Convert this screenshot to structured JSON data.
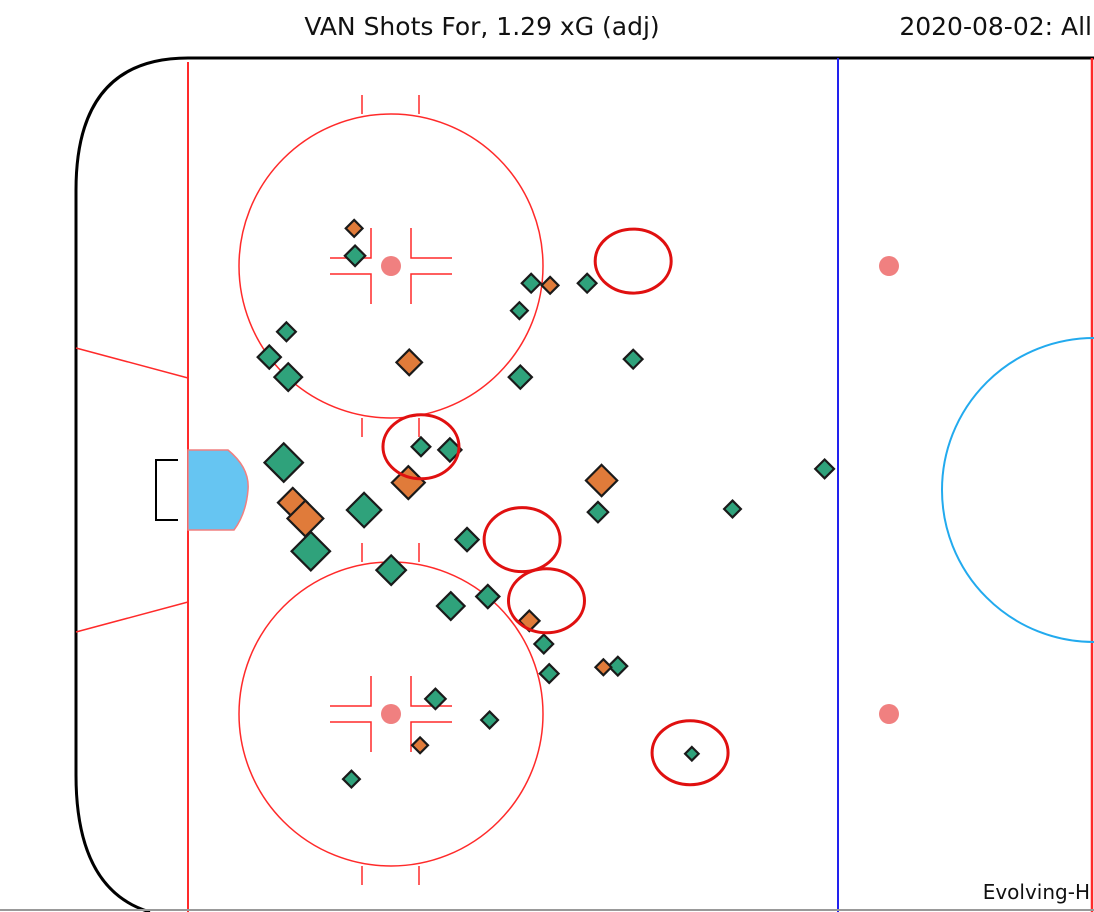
{
  "header": {
    "title": "VAN Shots For, 1.29 xG (adj)",
    "subtitle": "2020-08-02: All"
  },
  "footer": {
    "credit": "Evolving-H"
  },
  "chart_data": {
    "type": "scatter",
    "colors": {
      "goal": "#e07b3a",
      "shot": "#2fa27b",
      "marker_outline": "#1a1a1a",
      "highlight_circle": "#e01010",
      "rink_lines": "#ff2a2a",
      "blue_line": "#2222ee",
      "crease": "#66c5f2",
      "center_circle": "#22aaee",
      "faceoff_dot": "#f08080"
    },
    "series": [
      {
        "points": [
          {
            "x": 18.5,
            "y": -22.2,
            "xg": 0.02
          },
          {
            "x": 38.0,
            "y": -19.6,
            "xg": 0.015
          },
          {
            "x": 44.2,
            "y": -19.6,
            "xg": 0.015
          },
          {
            "x": 36.7,
            "y": -17.0,
            "xg": 0.01
          },
          {
            "x": 10.9,
            "y": -15.0,
            "xg": 0.015
          },
          {
            "x": 49.3,
            "y": -12.4,
            "xg": 0.015
          },
          {
            "x": 9.0,
            "y": -12.6,
            "xg": 0.03
          },
          {
            "x": 11.1,
            "y": -10.7,
            "xg": 0.05
          },
          {
            "x": 36.8,
            "y": -10.7,
            "xg": 0.03
          },
          {
            "x": 25.8,
            "y": -4.1,
            "xg": 0.015
          },
          {
            "x": 29.0,
            "y": -3.8,
            "xg": 0.03
          },
          {
            "x": 10.6,
            "y": -2.6,
            "xg": 0.12
          },
          {
            "x": 45.4,
            "y": 2.1,
            "xg": 0.02
          },
          {
            "x": 60.3,
            "y": 1.8,
            "xg": 0.01
          },
          {
            "x": 19.5,
            "y": 1.9,
            "xg": 0.09
          },
          {
            "x": 30.9,
            "y": 4.7,
            "xg": 0.03
          },
          {
            "x": 13.6,
            "y": 5.8,
            "xg": 0.12
          },
          {
            "x": 22.5,
            "y": 7.6,
            "xg": 0.06
          },
          {
            "x": 29.1,
            "y": 11.0,
            "xg": 0.05
          },
          {
            "x": 33.2,
            "y": 10.1,
            "xg": 0.03
          },
          {
            "x": 39.4,
            "y": 14.6,
            "xg": 0.015
          },
          {
            "x": 40.0,
            "y": 17.4,
            "xg": 0.015
          },
          {
            "x": 47.6,
            "y": 16.7,
            "xg": 0.015
          },
          {
            "x": 27.4,
            "y": 19.8,
            "xg": 0.02
          },
          {
            "x": 33.4,
            "y": 21.8,
            "xg": 0.01
          },
          {
            "x": 70.5,
            "y": -2.0,
            "xg": 0.015
          },
          {
            "x": 55.8,
            "y": 25.0,
            "xg": 0.004
          },
          {
            "x": 18.1,
            "y": 27.4,
            "xg": 0.01
          }
        ]
      },
      {
        "points": [
          {
            "x": 18.4,
            "y": -24.8,
            "xg": 0.01
          },
          {
            "x": 40.1,
            "y": -19.4,
            "xg": 0.01
          },
          {
            "x": 24.5,
            "y": -12.1,
            "xg": 0.04
          },
          {
            "x": 45.8,
            "y": -0.9,
            "xg": 0.07
          },
          {
            "x": 24.4,
            "y": -0.7,
            "xg": 0.08
          },
          {
            "x": 11.6,
            "y": 1.2,
            "xg": 0.06
          },
          {
            "x": 13.0,
            "y": 2.7,
            "xg": 0.1
          },
          {
            "x": 37.8,
            "y": 12.4,
            "xg": 0.02
          },
          {
            "x": 46.0,
            "y": 16.8,
            "xg": 0.008
          },
          {
            "x": 25.7,
            "y": 24.2,
            "xg": 0.008
          }
        ]
      }
    ],
    "highlighted": [
      {
        "x": 49.3,
        "y": -21.7
      },
      {
        "x": 25.8,
        "y": -4.1
      },
      {
        "x": 37.0,
        "y": 4.7
      },
      {
        "x": 39.7,
        "y": 10.5
      },
      {
        "x": 55.6,
        "y": 24.9
      }
    ],
    "rink": {
      "x_range": [
        0,
        100
      ],
      "y_range": [
        -42.5,
        42.5
      ]
    }
  }
}
